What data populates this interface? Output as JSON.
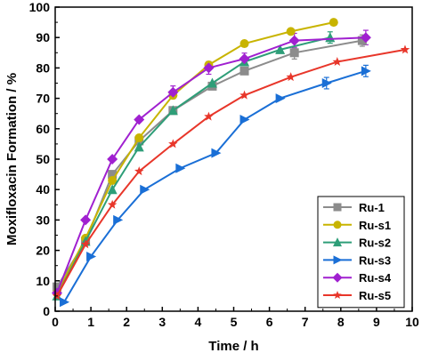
{
  "chart_data": {
    "type": "line",
    "title": "",
    "xlabel": "Time / h",
    "ylabel": "Moxifloxacin Formation / %",
    "xlim": [
      0,
      10
    ],
    "ylim": [
      0,
      100
    ],
    "xticks": [
      0,
      1,
      2,
      3,
      4,
      5,
      6,
      7,
      8,
      9,
      10
    ],
    "yticks": [
      0,
      10,
      20,
      30,
      40,
      50,
      60,
      70,
      80,
      90,
      100
    ],
    "grid": false,
    "legend_position": "bottom-right",
    "series": [
      {
        "name": "Ru-1",
        "color": "#8c8c8c",
        "marker": "square",
        "x": [
          0.05,
          0.85,
          1.6,
          2.35,
          3.3,
          4.4,
          5.3,
          6.7,
          8.6
        ],
        "y": [
          8,
          23,
          45,
          56,
          66,
          74,
          79,
          85,
          89
        ]
      },
      {
        "name": "Ru-s1",
        "color": "#c8b400",
        "marker": "circle",
        "x": [
          0.05,
          0.85,
          1.6,
          2.35,
          3.3,
          4.3,
          5.3,
          6.6,
          7.8
        ],
        "y": [
          6,
          24,
          43,
          57,
          71,
          81,
          88,
          92,
          95
        ]
      },
      {
        "name": "Ru-s2",
        "color": "#2e9e78",
        "marker": "triangle-up",
        "x": [
          0.05,
          0.85,
          1.6,
          2.35,
          3.3,
          4.4,
          5.3,
          6.3,
          7.7
        ],
        "y": [
          5,
          23,
          40,
          54,
          66,
          75,
          82,
          86,
          90
        ]
      },
      {
        "name": "Ru-s3",
        "color": "#1a6fd6",
        "marker": "triangle-right",
        "x": [
          0.25,
          1.0,
          1.75,
          2.5,
          3.5,
          4.5,
          5.3,
          6.3,
          7.6,
          8.7
        ],
        "y": [
          3,
          18,
          30,
          40,
          47,
          52,
          63,
          70,
          75,
          79
        ]
      },
      {
        "name": "Ru-s4",
        "color": "#a020d0",
        "marker": "diamond",
        "x": [
          0.05,
          0.85,
          1.6,
          2.35,
          3.3,
          4.3,
          5.3,
          6.7,
          8.7
        ],
        "y": [
          6,
          30,
          50,
          63,
          72,
          80,
          83,
          89,
          90
        ]
      },
      {
        "name": "Ru-s5",
        "color": "#e8362a",
        "marker": "star",
        "x": [
          0.05,
          0.85,
          1.6,
          2.35,
          3.3,
          4.3,
          5.3,
          6.6,
          7.9,
          9.8
        ],
        "y": [
          5,
          22,
          35,
          46,
          55,
          64,
          71,
          77,
          82,
          86
        ]
      }
    ],
    "error_bar_points": [
      {
        "series": "Ru-s4",
        "x": 3.3,
        "y": 72,
        "err": 1.2
      },
      {
        "series": "Ru-s4",
        "x": 4.3,
        "y": 80,
        "err": 1.2
      },
      {
        "series": "Ru-s4",
        "x": 5.3,
        "y": 83,
        "err": 1.0
      },
      {
        "series": "Ru-s4",
        "x": 6.7,
        "y": 89,
        "err": 1.5
      },
      {
        "series": "Ru-s4",
        "x": 8.7,
        "y": 90,
        "err": 1.5
      },
      {
        "series": "Ru-1",
        "x": 6.7,
        "y": 85,
        "err": 1.2
      },
      {
        "series": "Ru-1",
        "x": 8.6,
        "y": 89,
        "err": 1.0
      },
      {
        "series": "Ru-s2",
        "x": 7.7,
        "y": 90,
        "err": 1.0
      },
      {
        "series": "Ru-s3",
        "x": 8.7,
        "y": 79,
        "err": 1.0
      },
      {
        "series": "Ru-s3",
        "x": 7.6,
        "y": 75,
        "err": 1.0
      }
    ]
  }
}
